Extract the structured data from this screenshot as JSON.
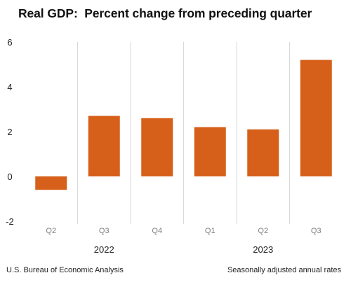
{
  "chart_data": {
    "type": "bar",
    "title": "Real GDP:  Percent change from preceding quarter",
    "categories": [
      "Q2",
      "Q3",
      "Q4",
      "Q1",
      "Q2",
      "Q3"
    ],
    "years": [
      {
        "label": "2022",
        "categories": [
          0,
          2
        ]
      },
      {
        "label": "2023",
        "categories": [
          3,
          5
        ]
      }
    ],
    "values": [
      -0.6,
      2.7,
      2.6,
      2.2,
      2.1,
      5.2
    ],
    "ylim": [
      -2,
      6
    ],
    "yticks": [
      -2,
      0,
      2,
      4,
      6
    ],
    "xlabel": "",
    "ylabel": "",
    "grid": "vertical separators between categories",
    "bar_color": "#d6601a"
  },
  "footer": {
    "source": "U.S. Bureau of Economic Analysis",
    "note": "Seasonally adjusted annual rates"
  },
  "colors": {
    "bar": "#d6601a",
    "grid": "#d9d9d9",
    "axis_text": "#222222",
    "category_text": "#7f7f7f"
  }
}
